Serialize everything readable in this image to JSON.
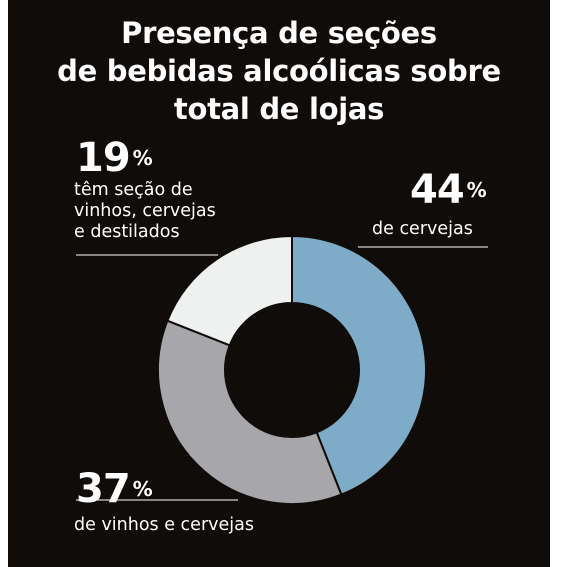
{
  "chart_data": {
    "type": "pie",
    "title_lines": [
      "Presença de seções",
      "de bebidas alcoólicas sobre",
      "total de lojas"
    ],
    "slices": [
      {
        "value": 44,
        "value_label": "44",
        "unit": "%",
        "description_lines": [
          "de cervejas"
        ],
        "color": "#7eabc7"
      },
      {
        "value": 37,
        "value_label": "37",
        "unit": "%",
        "description_lines": [
          "de vinhos e cervejas"
        ],
        "color": "#a7a6ab"
      },
      {
        "value": 19,
        "value_label": "19",
        "unit": "%",
        "description_lines": [
          "têm seção de",
          "vinhos, cervejas",
          "e destilados"
        ],
        "color": "#eff1f0"
      }
    ]
  },
  "colors": {
    "background": "#100c0a",
    "text": "#ffffff",
    "separator": "#100c0a",
    "leader_line": "#ffffff"
  }
}
